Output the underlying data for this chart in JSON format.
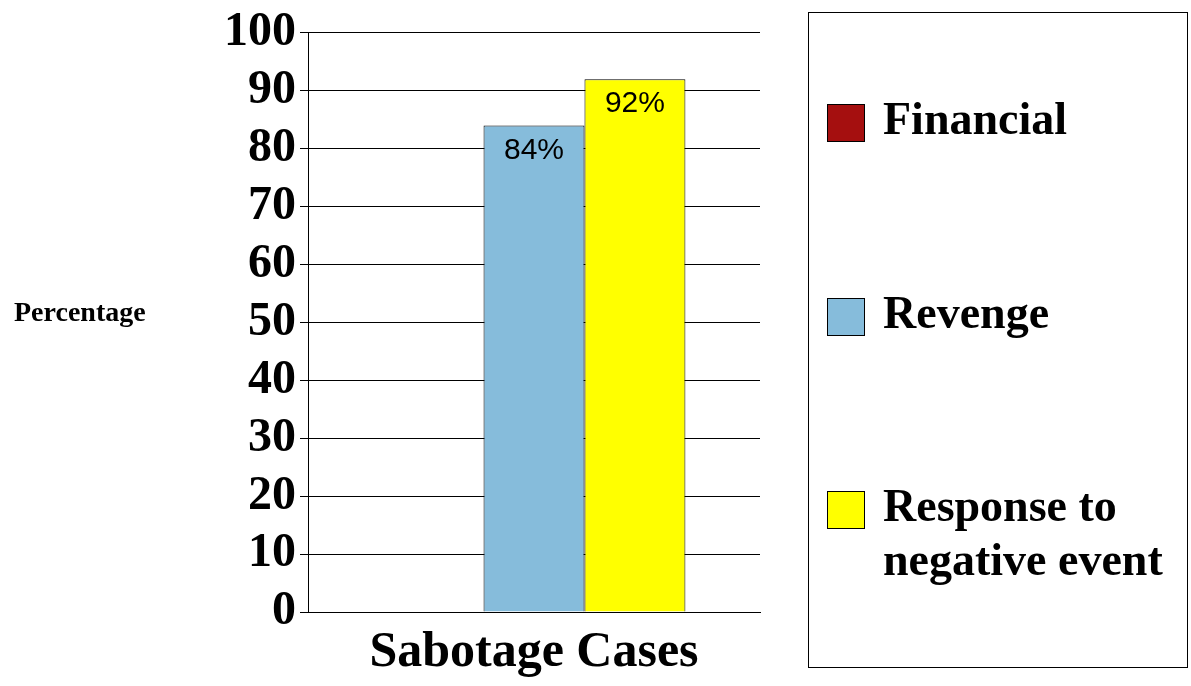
{
  "chart_data": {
    "type": "bar",
    "ylabel": "Percentage",
    "categories": [
      "Sabotage Cases"
    ],
    "series": [
      {
        "name": "Financial",
        "color": "#a50f0f",
        "values": [
          0
        ]
      },
      {
        "name": "Revenge",
        "color": "#86bcdb",
        "values": [
          84
        ],
        "value_labels": [
          "84%"
        ]
      },
      {
        "name": "Response to negative event",
        "color": "#ffff00",
        "values": [
          92
        ],
        "value_labels": [
          "92%"
        ]
      }
    ],
    "ylim": [
      0,
      100
    ],
    "yticks": [
      0,
      10,
      20,
      30,
      40,
      50,
      60,
      70,
      80,
      90,
      100
    ],
    "grid": "y",
    "legend": "right"
  }
}
